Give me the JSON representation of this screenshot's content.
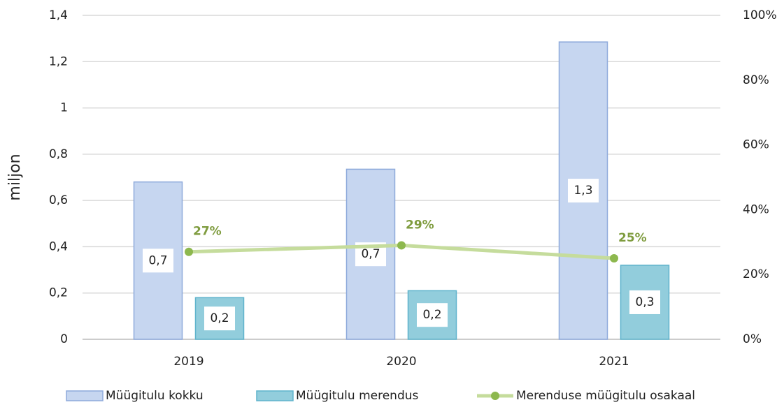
{
  "chart_data": {
    "type": "bar",
    "y_label": "miljon",
    "categories": [
      "2019",
      "2020",
      "2021"
    ],
    "series": [
      {
        "name": "Müügitulu kokku",
        "type": "bar",
        "color": "#c6d6f0",
        "values": [
          0.68,
          0.735,
          1.285
        ],
        "value_labels": [
          "0,7",
          "0,7",
          "1,3"
        ]
      },
      {
        "name": "Müügitulu merendus",
        "type": "bar",
        "color": "#92cddc",
        "values": [
          0.18,
          0.21,
          0.32
        ],
        "value_labels": [
          "0,2",
          "0,2",
          "0,3"
        ]
      },
      {
        "name": "Merenduse müügitulu osakaal",
        "type": "line",
        "axis": "y2",
        "color": "#c5dc9c",
        "values": [
          27,
          29,
          25
        ],
        "value_labels": [
          "27%",
          "29%",
          "25%"
        ]
      }
    ],
    "ylim": [
      0,
      1.4
    ],
    "yticks": [
      0,
      {
        "value": 0.2,
        "label": "0,2"
      },
      {
        "value": 0.4,
        "label": "0,4"
      },
      {
        "value": 0.6,
        "label": "0,6"
      },
      {
        "value": 0.8,
        "label": "0,8"
      },
      1,
      {
        "value": 1.2,
        "label": "1,2"
      },
      {
        "value": 1.4,
        "label": "1,4"
      }
    ],
    "y2lim": [
      0,
      100
    ],
    "y2ticks": [
      {
        "value": 0,
        "label": "0%"
      },
      {
        "value": 20,
        "label": "20%"
      },
      {
        "value": 40,
        "label": "40%"
      },
      {
        "value": 60,
        "label": "60%"
      },
      {
        "value": 80,
        "label": "80%"
      },
      {
        "value": 100,
        "label": "100%"
      }
    ],
    "grid": true,
    "legend": "bottom"
  }
}
